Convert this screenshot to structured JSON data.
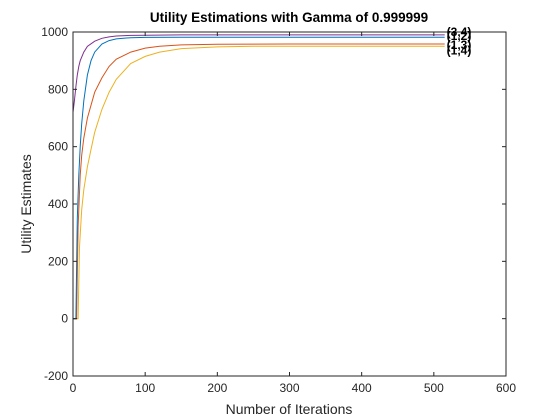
{
  "chart_data": {
    "type": "line",
    "title": "Utility Estimations with Gamma of 0.999999",
    "xlabel": "Number of Iterations",
    "ylabel": "Utility Estimates",
    "xlim": [
      0,
      600
    ],
    "ylim": [
      -200,
      1000
    ],
    "xticks": [
      0,
      100,
      200,
      300,
      400,
      500,
      600
    ],
    "yticks": [
      -200,
      0,
      200,
      400,
      600,
      800,
      1000
    ],
    "xtick_labels": [
      "0",
      "100",
      "200",
      "300",
      "400",
      "500",
      "600"
    ],
    "ytick_labels": [
      "-200",
      "0",
      "200",
      "400",
      "600",
      "800",
      "1000"
    ],
    "grid": false,
    "series": [
      {
        "name": "(3,4)",
        "color": "#7E2F8E",
        "x": [
          0,
          2,
          4,
          6,
          8,
          10,
          15,
          20,
          30,
          40,
          50,
          60,
          80,
          100,
          150,
          200,
          300,
          400,
          515
        ],
        "y": [
          720,
          760,
          810,
          850,
          880,
          900,
          930,
          950,
          968,
          978,
          983,
          986,
          988,
          989,
          990,
          990,
          990,
          990,
          990
        ]
      },
      {
        "name": "(1,2)",
        "color": "#0072BD",
        "x": [
          0,
          4,
          6,
          8,
          10,
          12,
          15,
          20,
          25,
          30,
          40,
          50,
          60,
          80,
          100,
          150,
          200,
          300,
          400,
          515
        ],
        "y": [
          0,
          0,
          350,
          500,
          600,
          680,
          760,
          850,
          900,
          930,
          958,
          970,
          976,
          980,
          981,
          982,
          982,
          982,
          982,
          982
        ]
      },
      {
        "name": "(1,3)",
        "color": "#D95319",
        "x": [
          0,
          5,
          7,
          10,
          12,
          15,
          20,
          30,
          40,
          50,
          60,
          80,
          100,
          120,
          150,
          200,
          300,
          400,
          515
        ],
        "y": [
          0,
          0,
          320,
          500,
          570,
          630,
          700,
          790,
          840,
          880,
          905,
          930,
          944,
          950,
          955,
          957,
          958,
          958,
          958
        ]
      },
      {
        "name": "(1,4)",
        "color": "#EDB120",
        "x": [
          0,
          7,
          9,
          12,
          15,
          20,
          25,
          30,
          40,
          50,
          60,
          80,
          100,
          120,
          150,
          200,
          250,
          300,
          400,
          515
        ],
        "y": [
          0,
          0,
          250,
          380,
          450,
          530,
          590,
          650,
          730,
          790,
          835,
          890,
          915,
          930,
          942,
          948,
          950,
          950,
          950,
          950
        ]
      }
    ],
    "label_overlap_text": "(1,2)"
  }
}
